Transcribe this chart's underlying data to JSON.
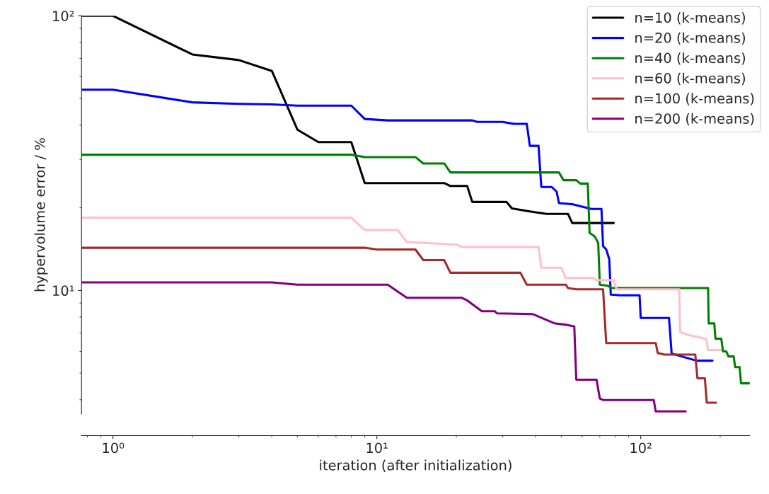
{
  "chart_data": {
    "type": "line",
    "xlabel": "iteration (after initialization)",
    "ylabel": "hypervolume error / %",
    "log": "xy",
    "grid": false,
    "legend": "top right",
    "line_style": "solid",
    "xlim": [
      0.76,
      259
    ],
    "ylim": [
      3.55,
      100
    ],
    "xticks": [
      {
        "value": 1,
        "label": "10⁰"
      },
      {
        "value": 10,
        "label": "10¹"
      },
      {
        "value": 100,
        "label": "10²"
      }
    ],
    "yticks": [
      {
        "value": 10,
        "label": "10¹"
      },
      {
        "value": 100,
        "label": "10²"
      }
    ],
    "series": [
      {
        "name": "n=10 (k-means)",
        "color": "#000000",
        "x": [
          0.76,
          1,
          2,
          3,
          4,
          5,
          6,
          8,
          9,
          18,
          19,
          22,
          23,
          31,
          32.5,
          38,
          44,
          53,
          55,
          79
        ],
        "values": [
          100,
          100,
          72.3,
          69,
          63,
          38.5,
          34.7,
          34.7,
          24.6,
          24.6,
          24.0,
          24.0,
          21.0,
          21.0,
          19.9,
          19.4,
          19.0,
          19.0,
          17.6,
          17.6
        ]
      },
      {
        "name": "n=20 (k-means)",
        "color": "#0000ff",
        "x": [
          0.76,
          1,
          2,
          3,
          4,
          5,
          8,
          9,
          11,
          23,
          24,
          30,
          33,
          37,
          38,
          41,
          42,
          46,
          48,
          49,
          55,
          65,
          71,
          72,
          74,
          76,
          77,
          84,
          99,
          100,
          128,
          131,
          163,
          187
        ],
        "values": [
          53.8,
          53.8,
          48.4,
          47.8,
          47.6,
          47.1,
          47.1,
          42.1,
          41.6,
          41.6,
          41.1,
          41.1,
          40.4,
          40.4,
          33.6,
          33.6,
          23.8,
          23.8,
          22.9,
          20.8,
          20.6,
          19.8,
          19.8,
          14.5,
          14.1,
          13.0,
          9.66,
          9.6,
          9.6,
          7.94,
          7.94,
          5.89,
          5.55,
          5.55
        ]
      },
      {
        "name": "n=40 (k-means)",
        "color": "#008000",
        "x": [
          0.76,
          8,
          9,
          14,
          15,
          18,
          19,
          49,
          51,
          57,
          59,
          63,
          64,
          67,
          69,
          70,
          75,
          78,
          180,
          181,
          190,
          192,
          202,
          205,
          211,
          215,
          225,
          228,
          237,
          240,
          259
        ],
        "values": [
          31.2,
          31.2,
          30.6,
          30.6,
          29.0,
          29.0,
          26.9,
          26.9,
          25.2,
          25.2,
          24.5,
          24.5,
          16.2,
          15.7,
          14.9,
          10.5,
          10.4,
          10.2,
          10.2,
          7.59,
          7.59,
          6.67,
          6.67,
          6.0,
          6.0,
          5.75,
          5.75,
          5.26,
          5.26,
          4.59,
          4.59
        ]
      },
      {
        "name": "n=60 (k-means)",
        "color": "#ffc0cb",
        "x": [
          0.76,
          8,
          9,
          12,
          13,
          20,
          21,
          41,
          42,
          50,
          52,
          66,
          68,
          79,
          81,
          140,
          141,
          150,
          177,
          180,
          201
        ],
        "values": [
          18.4,
          18.4,
          16.6,
          16.6,
          15.0,
          14.7,
          14.4,
          14.4,
          12.1,
          12.1,
          11.1,
          11.1,
          10.9,
          10.9,
          10.1,
          10.1,
          7.06,
          6.9,
          6.67,
          6.07,
          6.07
        ]
      },
      {
        "name": "n=100 (k-means)",
        "color": "#a52a2a",
        "x": [
          0.76,
          9,
          10,
          14,
          15,
          18,
          19,
          35,
          37,
          52,
          53,
          57,
          72,
          74,
          114,
          116,
          123,
          161,
          164,
          175,
          178,
          193
        ],
        "values": [
          14.3,
          14.3,
          14.1,
          14.1,
          12.9,
          12.9,
          11.6,
          11.6,
          10.5,
          10.5,
          10.2,
          10.1,
          10.1,
          6.43,
          6.43,
          5.92,
          5.84,
          5.84,
          4.79,
          4.79,
          3.9,
          3.9
        ]
      },
      {
        "name": "n=200 (k-means)",
        "color": "#800080",
        "x": [
          0.76,
          4,
          5,
          11,
          12,
          13,
          21,
          22,
          25,
          28,
          28.5,
          39,
          47,
          52,
          56,
          57,
          68,
          70,
          72,
          112,
          114,
          148
        ],
        "values": [
          10.7,
          10.7,
          10.5,
          10.5,
          9.9,
          9.4,
          9.4,
          9.2,
          8.4,
          8.4,
          8.25,
          8.2,
          7.6,
          7.5,
          7.4,
          4.73,
          4.73,
          4.04,
          3.99,
          3.99,
          3.63,
          3.63
        ]
      }
    ]
  }
}
